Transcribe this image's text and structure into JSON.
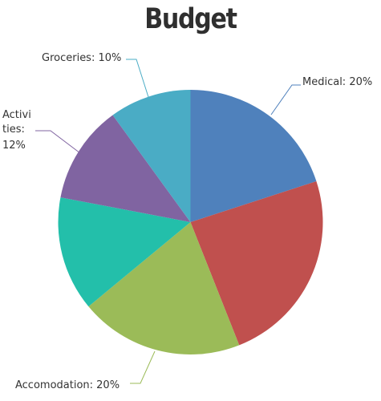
{
  "chart_data": {
    "type": "pie",
    "title": "Budget",
    "slices": [
      {
        "label": "Medical",
        "value": 20,
        "text": "Medical: 20%",
        "color": "#4f81bc"
      },
      {
        "label": "",
        "value": 24,
        "text": "",
        "color": "#c0504e"
      },
      {
        "label": "Accomodation",
        "value": 20,
        "text": "Accomodation: 20%",
        "color": "#9bbb58"
      },
      {
        "label": "",
        "value": 14,
        "text": "",
        "color": "#23bfaa"
      },
      {
        "label": "Activities",
        "value": 12,
        "text": "Activi|ties:|12%",
        "color": "#8064a1"
      },
      {
        "label": "Groceries",
        "value": 10,
        "text": "Groceries: 10%",
        "color": "#4aacc5"
      }
    ]
  }
}
